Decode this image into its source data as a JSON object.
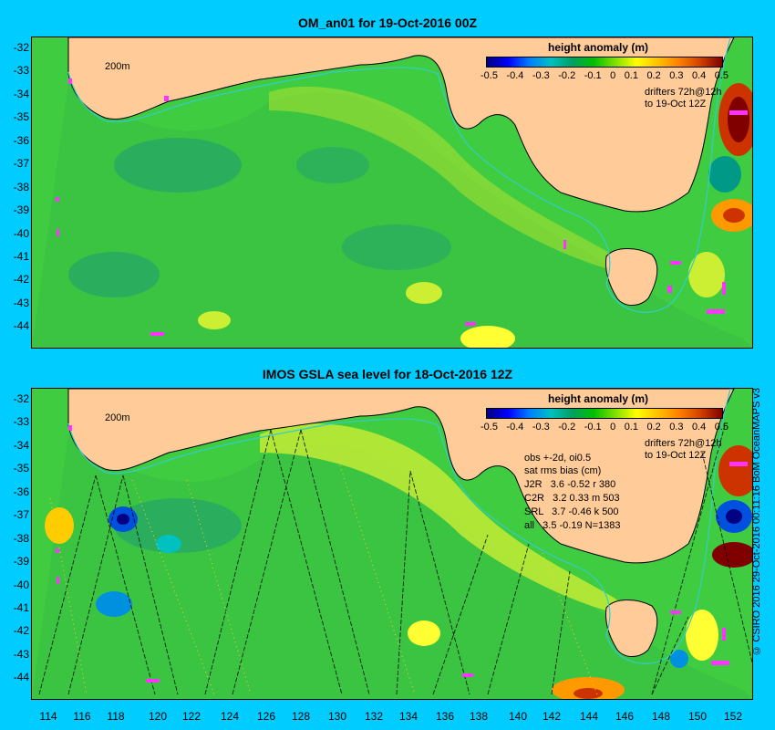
{
  "panel1": {
    "title": "OM_an01 for 19-Oct-2016 00Z",
    "legend_title": "height anomaly (m)",
    "contour_label": "200m",
    "drifters_line1": "drifters 72h@12h",
    "drifters_line2": "to 19-Oct 12Z"
  },
  "panel2": {
    "title": "IMOS GSLA sea level  for 18-Oct-2016 12Z",
    "legend_title": "height anomaly (m)",
    "contour_label": "200m",
    "drifters_line1": "drifters 72h@12h",
    "drifters_line2": "to 19-Oct 12Z",
    "stats": [
      "obs +-2d, oi0.5",
      "sat rms bias (cm)",
      "J2R   3.6 -0.52 r 380",
      "C2R   3.2 0.33 m 503",
      "SRL   3.7 -0.46 k 500",
      "all   3.5 -0.19 N=1383"
    ]
  },
  "colorbar_ticks": [
    "-0.5",
    "-0.4",
    "-0.3",
    "-0.2",
    "-0.1",
    "0",
    "0.1",
    "0.2",
    "0.3",
    "0.4",
    "0.5"
  ],
  "y_ticks": [
    "-32",
    "-33",
    "-34",
    "-35",
    "-36",
    "-37",
    "-38",
    "-39",
    "-40",
    "-41",
    "-42",
    "-43",
    "-44"
  ],
  "x_ticks": [
    "114",
    "116",
    "118",
    "120",
    "122",
    "124",
    "126",
    "128",
    "130",
    "132",
    "134",
    "136",
    "138",
    "140",
    "142",
    "144",
    "146",
    "148",
    "150",
    "152"
  ],
  "credit": "© CSIRO 2016  29-Oct-2016 00:11:16 BoM OceanMAPS v3",
  "colors": {
    "ocean_mid": "#33cc33",
    "land": "#ffcc99",
    "background": "#00ccff",
    "drifter": "#ff33ff",
    "contour_200m": "#33cccc"
  }
}
